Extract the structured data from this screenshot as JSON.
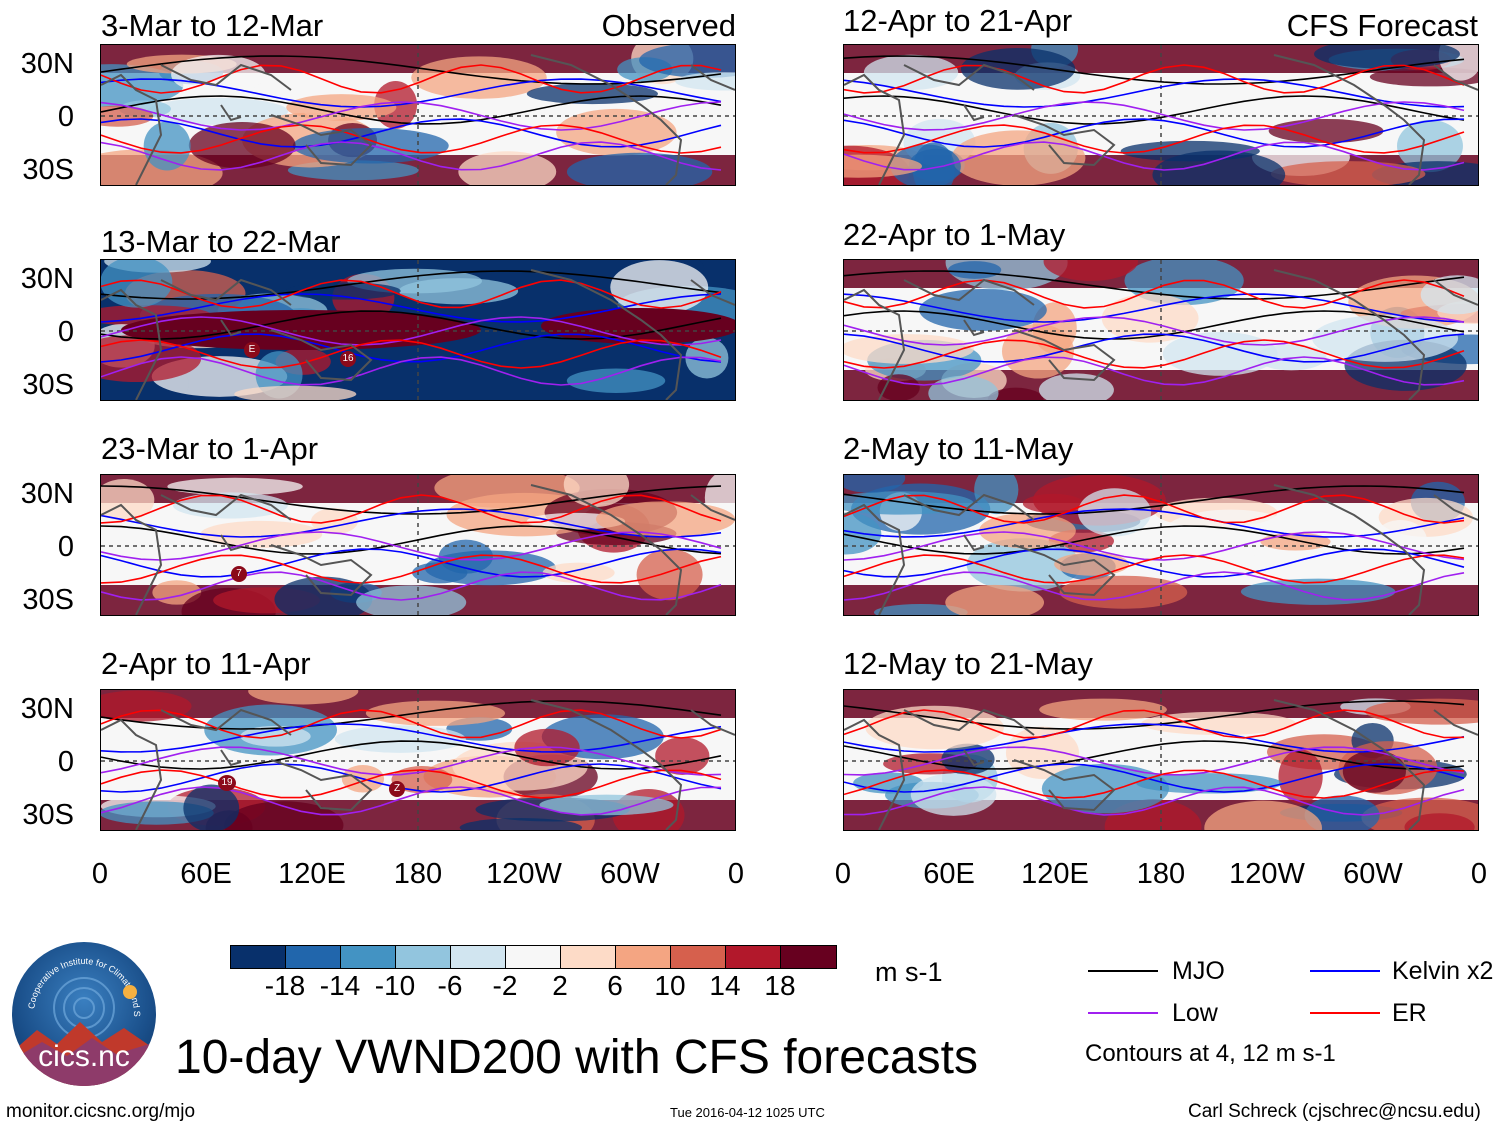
{
  "columns": {
    "left_label": "Observed",
    "right_label": "CFS Forecast"
  },
  "left_panels": [
    {
      "title": "3-Mar to 12-Mar"
    },
    {
      "title": "13-Mar to 22-Mar",
      "markers": [
        "E",
        "16"
      ]
    },
    {
      "title": "23-Mar to 1-Apr",
      "markers": [
        "7"
      ]
    },
    {
      "title": "2-Apr to 11-Apr",
      "markers": [
        "19",
        "Z"
      ]
    }
  ],
  "right_panels": [
    {
      "title": "12-Apr to 21-Apr"
    },
    {
      "title": "22-Apr to 1-May"
    },
    {
      "title": "2-May to 11-May"
    },
    {
      "title": "12-May to 21-May"
    }
  ],
  "y_ticks": [
    "30N",
    "0",
    "30S"
  ],
  "x_ticks": [
    "0",
    "60E",
    "120E",
    "180",
    "120W",
    "60W",
    "0"
  ],
  "colorbar": {
    "colors": [
      "#08306b",
      "#2166ac",
      "#4393c3",
      "#92c5de",
      "#d1e5f0",
      "#f7f7f7",
      "#fddbc7",
      "#f4a582",
      "#d6604d",
      "#b2182b",
      "#67001f"
    ],
    "labels": [
      "-18",
      "-14",
      "-10",
      "-6",
      "-2",
      "2",
      "6",
      "10",
      "14",
      "18"
    ],
    "units": "m s-1"
  },
  "legend": {
    "items": [
      {
        "label": "MJO",
        "color": "#000000"
      },
      {
        "label": "Kelvin x2",
        "color": "#0000ff"
      },
      {
        "label": "Low",
        "color": "#a020f0"
      },
      {
        "label": "ER",
        "color": "#ff0000"
      }
    ],
    "contours_note": "Contours at 4, 12 m s-1"
  },
  "main_title": "10-day VWND200 with CFS forecasts",
  "logo_text": "cics.nc",
  "logo_ring_text": "Cooperative Institute for Climate and Satellites",
  "footer": {
    "url": "monitor.cicsnc.org/mjo",
    "timestamp": "Tue 2016-04-12 1025 UTC",
    "author": "Carl Schreck (cjschrec@ncsu.edu)"
  }
}
